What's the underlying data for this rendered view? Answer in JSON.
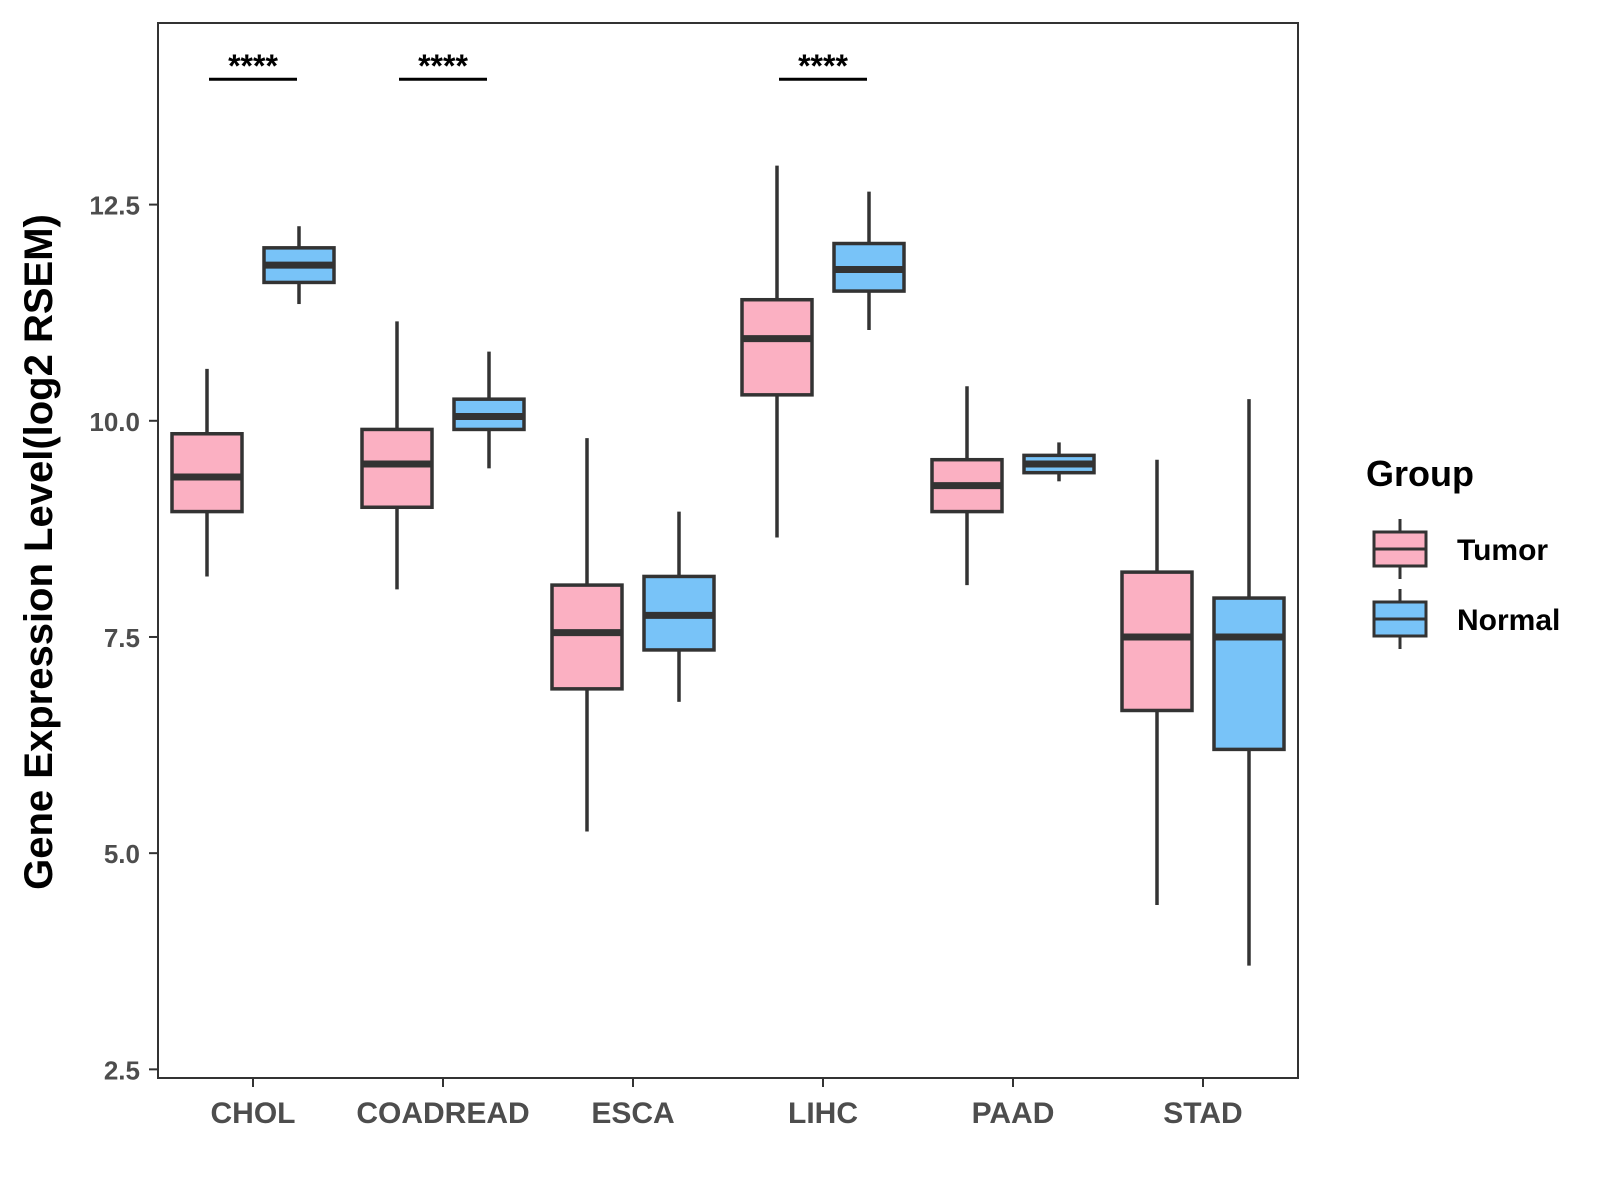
{
  "chart_data": {
    "type": "boxplot",
    "title": "",
    "xlabel": "",
    "ylabel": "Gene Expression Level(log2 RSEM)",
    "ylim": [
      2.4,
      14.6
    ],
    "yticks": [
      2.5,
      5.0,
      7.5,
      10.0,
      12.5
    ],
    "ytick_labels": [
      "2.5",
      "5.0",
      "7.5",
      "10.0",
      "12.5"
    ],
    "categories": [
      "CHOL",
      "COADREAD",
      "ESCA",
      "LIHC",
      "PAAD",
      "STAD"
    ],
    "grid": false,
    "legend": {
      "title": "Group",
      "position": "right",
      "entries": [
        "Tumor",
        "Normal"
      ]
    },
    "series": [
      {
        "name": "Tumor",
        "color": "#FBB0C2",
        "boxes": [
          {
            "min": 8.2,
            "q1": 8.95,
            "median": 9.35,
            "q3": 9.85,
            "max": 10.6
          },
          {
            "min": 8.05,
            "q1": 9.0,
            "median": 9.5,
            "q3": 9.9,
            "max": 11.15
          },
          {
            "min": 5.25,
            "q1": 6.9,
            "median": 7.55,
            "q3": 8.1,
            "max": 9.8
          },
          {
            "min": 8.65,
            "q1": 10.3,
            "median": 10.95,
            "q3": 11.4,
            "max": 12.95
          },
          {
            "min": 8.1,
            "q1": 8.95,
            "median": 9.25,
            "q3": 9.55,
            "max": 10.4
          },
          {
            "min": 4.4,
            "q1": 6.65,
            "median": 7.5,
            "q3": 8.25,
            "max": 9.55
          }
        ]
      },
      {
        "name": "Normal",
        "color": "#78C3F8",
        "boxes": [
          {
            "min": 11.35,
            "q1": 11.6,
            "median": 11.8,
            "q3": 12.0,
            "max": 12.25
          },
          {
            "min": 9.45,
            "q1": 9.9,
            "median": 10.05,
            "q3": 10.25,
            "max": 10.8
          },
          {
            "min": 6.75,
            "q1": 7.35,
            "median": 7.75,
            "q3": 8.2,
            "max": 8.95
          },
          {
            "min": 11.05,
            "q1": 11.5,
            "median": 11.75,
            "q3": 12.05,
            "max": 12.65
          },
          {
            "min": 9.3,
            "q1": 9.4,
            "median": 9.5,
            "q3": 9.6,
            "max": 9.75
          },
          {
            "min": 3.7,
            "q1": 6.2,
            "median": 7.5,
            "q3": 7.95,
            "max": 10.25
          }
        ]
      }
    ],
    "annotations": [
      {
        "category": "CHOL",
        "label": "****"
      },
      {
        "category": "COADREAD",
        "label": "****"
      },
      {
        "category": "LIHC",
        "label": "****"
      }
    ]
  }
}
